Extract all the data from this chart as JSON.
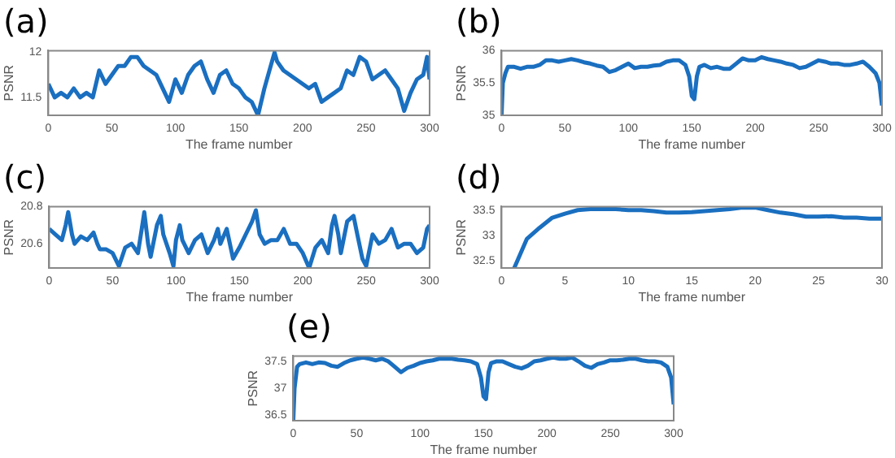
{
  "chart_data": [
    {
      "type": "line",
      "title": "(a)",
      "xlabel": "The frame number",
      "ylabel": "PSNR",
      "color": "#1a6fc0",
      "xlim": [
        0,
        300
      ],
      "xticks": [
        0,
        50,
        100,
        150,
        200,
        250,
        300
      ],
      "ylim": [
        11.3,
        12.02
      ],
      "yticks": [
        11.5,
        12
      ],
      "x": [
        0,
        5,
        10,
        15,
        20,
        25,
        30,
        35,
        40,
        45,
        50,
        55,
        60,
        65,
        70,
        75,
        80,
        85,
        90,
        95,
        100,
        105,
        110,
        115,
        120,
        125,
        130,
        135,
        140,
        145,
        150,
        155,
        160,
        165,
        170,
        175,
        178,
        180,
        185,
        190,
        195,
        200,
        205,
        210,
        215,
        220,
        225,
        230,
        235,
        240,
        245,
        250,
        255,
        260,
        265,
        270,
        275,
        280,
        285,
        290,
        295,
        298,
        300
      ],
      "values": [
        11.65,
        11.5,
        11.55,
        11.5,
        11.6,
        11.5,
        11.55,
        11.5,
        11.8,
        11.65,
        11.75,
        11.85,
        11.85,
        11.95,
        11.95,
        11.85,
        11.8,
        11.75,
        11.6,
        11.45,
        11.7,
        11.55,
        11.75,
        11.85,
        11.9,
        11.7,
        11.55,
        11.75,
        11.8,
        11.65,
        11.6,
        11.5,
        11.45,
        11.3,
        11.6,
        11.85,
        12.0,
        11.9,
        11.8,
        11.75,
        11.7,
        11.65,
        11.6,
        11.65,
        11.45,
        11.5,
        11.55,
        11.6,
        11.8,
        11.75,
        11.95,
        11.9,
        11.7,
        11.75,
        11.8,
        11.7,
        11.6,
        11.35,
        11.55,
        11.7,
        11.75,
        11.95,
        11.7
      ]
    },
    {
      "type": "line",
      "title": "(b)",
      "xlabel": "The frame number",
      "ylabel": "PSNR",
      "color": "#1a6fc0",
      "xlim": [
        0,
        300
      ],
      "xticks": [
        0,
        50,
        100,
        150,
        200,
        250,
        300
      ],
      "ylim": [
        35,
        36
      ],
      "yticks": [
        35,
        35.5,
        36
      ],
      "x": [
        0,
        1,
        3,
        5,
        10,
        15,
        20,
        25,
        30,
        35,
        40,
        45,
        50,
        55,
        60,
        65,
        70,
        75,
        80,
        85,
        90,
        95,
        100,
        105,
        110,
        115,
        120,
        125,
        130,
        135,
        140,
        145,
        148,
        150,
        152,
        154,
        156,
        160,
        165,
        170,
        175,
        180,
        185,
        190,
        195,
        200,
        205,
        210,
        215,
        220,
        225,
        230,
        235,
        240,
        245,
        250,
        255,
        260,
        265,
        270,
        275,
        280,
        285,
        290,
        295,
        298,
        300
      ],
      "values": [
        35.0,
        35.5,
        35.65,
        35.75,
        35.75,
        35.72,
        35.75,
        35.75,
        35.78,
        35.85,
        35.85,
        35.83,
        35.85,
        35.87,
        35.85,
        35.82,
        35.8,
        35.77,
        35.75,
        35.67,
        35.7,
        35.75,
        35.8,
        35.73,
        35.75,
        35.75,
        35.77,
        35.78,
        35.83,
        35.85,
        35.85,
        35.78,
        35.6,
        35.3,
        35.25,
        35.6,
        35.75,
        35.78,
        35.73,
        35.75,
        35.72,
        35.72,
        35.8,
        35.88,
        35.85,
        35.85,
        35.9,
        35.87,
        35.85,
        35.83,
        35.8,
        35.78,
        35.73,
        35.75,
        35.8,
        35.85,
        35.83,
        35.8,
        35.8,
        35.78,
        35.78,
        35.8,
        35.83,
        35.75,
        35.65,
        35.5,
        35.15
      ]
    },
    {
      "type": "line",
      "title": "(c)",
      "xlabel": "The frame number",
      "ylabel": "PSNR",
      "color": "#1a6fc0",
      "xlim": [
        0,
        300
      ],
      "xticks": [
        0,
        50,
        100,
        150,
        200,
        250,
        300
      ],
      "ylim": [
        20.47,
        20.8
      ],
      "yticks": [
        20.6,
        20.8
      ],
      "x": [
        0,
        5,
        10,
        13,
        15,
        18,
        20,
        25,
        30,
        35,
        38,
        40,
        45,
        50,
        55,
        60,
        65,
        70,
        73,
        75,
        78,
        80,
        85,
        88,
        90,
        95,
        98,
        100,
        103,
        105,
        110,
        115,
        120,
        125,
        130,
        133,
        135,
        140,
        145,
        150,
        155,
        160,
        163,
        166,
        170,
        175,
        180,
        185,
        190,
        195,
        200,
        205,
        210,
        215,
        220,
        223,
        225,
        228,
        230,
        235,
        240,
        243,
        247,
        250,
        255,
        260,
        265,
        270,
        275,
        280,
        285,
        290,
        295,
        298,
        300
      ],
      "values": [
        20.68,
        20.65,
        20.62,
        20.7,
        20.77,
        20.65,
        20.6,
        20.64,
        20.62,
        20.66,
        20.6,
        20.57,
        20.57,
        20.55,
        20.48,
        20.58,
        20.6,
        20.55,
        20.68,
        20.77,
        20.6,
        20.53,
        20.7,
        20.75,
        20.65,
        20.55,
        20.48,
        20.62,
        20.7,
        20.62,
        20.55,
        20.62,
        20.65,
        20.55,
        20.62,
        20.68,
        20.6,
        20.68,
        20.52,
        20.58,
        20.65,
        20.72,
        20.78,
        20.65,
        20.6,
        20.62,
        20.62,
        20.68,
        20.6,
        20.6,
        20.55,
        20.47,
        20.58,
        20.62,
        20.55,
        20.7,
        20.75,
        20.65,
        20.55,
        20.72,
        20.75,
        20.65,
        20.52,
        20.48,
        20.65,
        20.6,
        20.62,
        20.68,
        20.58,
        20.6,
        20.6,
        20.55,
        20.58,
        20.68,
        20.7
      ]
    },
    {
      "type": "line",
      "title": "(d)",
      "xlabel": "The frame number",
      "ylabel": "PSNR",
      "color": "#1a6fc0",
      "xlim": [
        0,
        30
      ],
      "xticks": [
        0,
        5,
        10,
        15,
        20,
        25,
        30
      ],
      "ylim": [
        32.35,
        33.57
      ],
      "yticks": [
        32.5,
        33,
        33.5
      ],
      "x": [
        1,
        2,
        3,
        4,
        5,
        6,
        7,
        8,
        9,
        10,
        11,
        12,
        13,
        14,
        15,
        16,
        17,
        18,
        19,
        20,
        21,
        22,
        23,
        24,
        25,
        26,
        27,
        28,
        29,
        30
      ],
      "values": [
        32.35,
        32.93,
        33.15,
        33.35,
        33.43,
        33.5,
        33.52,
        33.52,
        33.52,
        33.5,
        33.5,
        33.48,
        33.45,
        33.45,
        33.46,
        33.48,
        33.5,
        33.52,
        33.55,
        33.55,
        33.5,
        33.45,
        33.42,
        33.37,
        33.37,
        33.38,
        33.35,
        33.35,
        33.33,
        33.33
      ]
    },
    {
      "type": "line",
      "title": "(e)",
      "xlabel": "The frame number",
      "ylabel": "PSNR",
      "color": "#1a6fc0",
      "xlim": [
        0,
        300
      ],
      "xticks": [
        0,
        50,
        100,
        150,
        200,
        250,
        300
      ],
      "ylim": [
        36.4,
        37.6
      ],
      "yticks": [
        36.5,
        37,
        37.5
      ],
      "x": [
        0,
        1,
        3,
        5,
        10,
        15,
        20,
        25,
        30,
        35,
        40,
        45,
        50,
        55,
        60,
        65,
        70,
        75,
        80,
        85,
        90,
        95,
        100,
        105,
        110,
        115,
        120,
        125,
        130,
        135,
        140,
        145,
        148,
        150,
        152,
        154,
        156,
        160,
        165,
        170,
        175,
        180,
        185,
        190,
        195,
        200,
        205,
        210,
        215,
        220,
        225,
        230,
        235,
        240,
        245,
        250,
        255,
        260,
        265,
        270,
        275,
        280,
        285,
        290,
        295,
        298,
        300
      ],
      "values": [
        36.4,
        37.0,
        37.4,
        37.45,
        37.48,
        37.45,
        37.48,
        37.47,
        37.42,
        37.4,
        37.47,
        37.52,
        37.55,
        37.57,
        37.55,
        37.52,
        37.55,
        37.5,
        37.4,
        37.3,
        37.38,
        37.42,
        37.47,
        37.5,
        37.52,
        37.55,
        37.55,
        37.55,
        37.53,
        37.52,
        37.5,
        37.45,
        37.2,
        36.85,
        36.8,
        37.3,
        37.47,
        37.5,
        37.5,
        37.45,
        37.4,
        37.37,
        37.42,
        37.5,
        37.52,
        37.55,
        37.57,
        37.55,
        37.55,
        37.57,
        37.5,
        37.42,
        37.38,
        37.45,
        37.48,
        37.52,
        37.52,
        37.53,
        37.55,
        37.55,
        37.52,
        37.5,
        37.5,
        37.48,
        37.4,
        37.2,
        36.7
      ]
    }
  ]
}
